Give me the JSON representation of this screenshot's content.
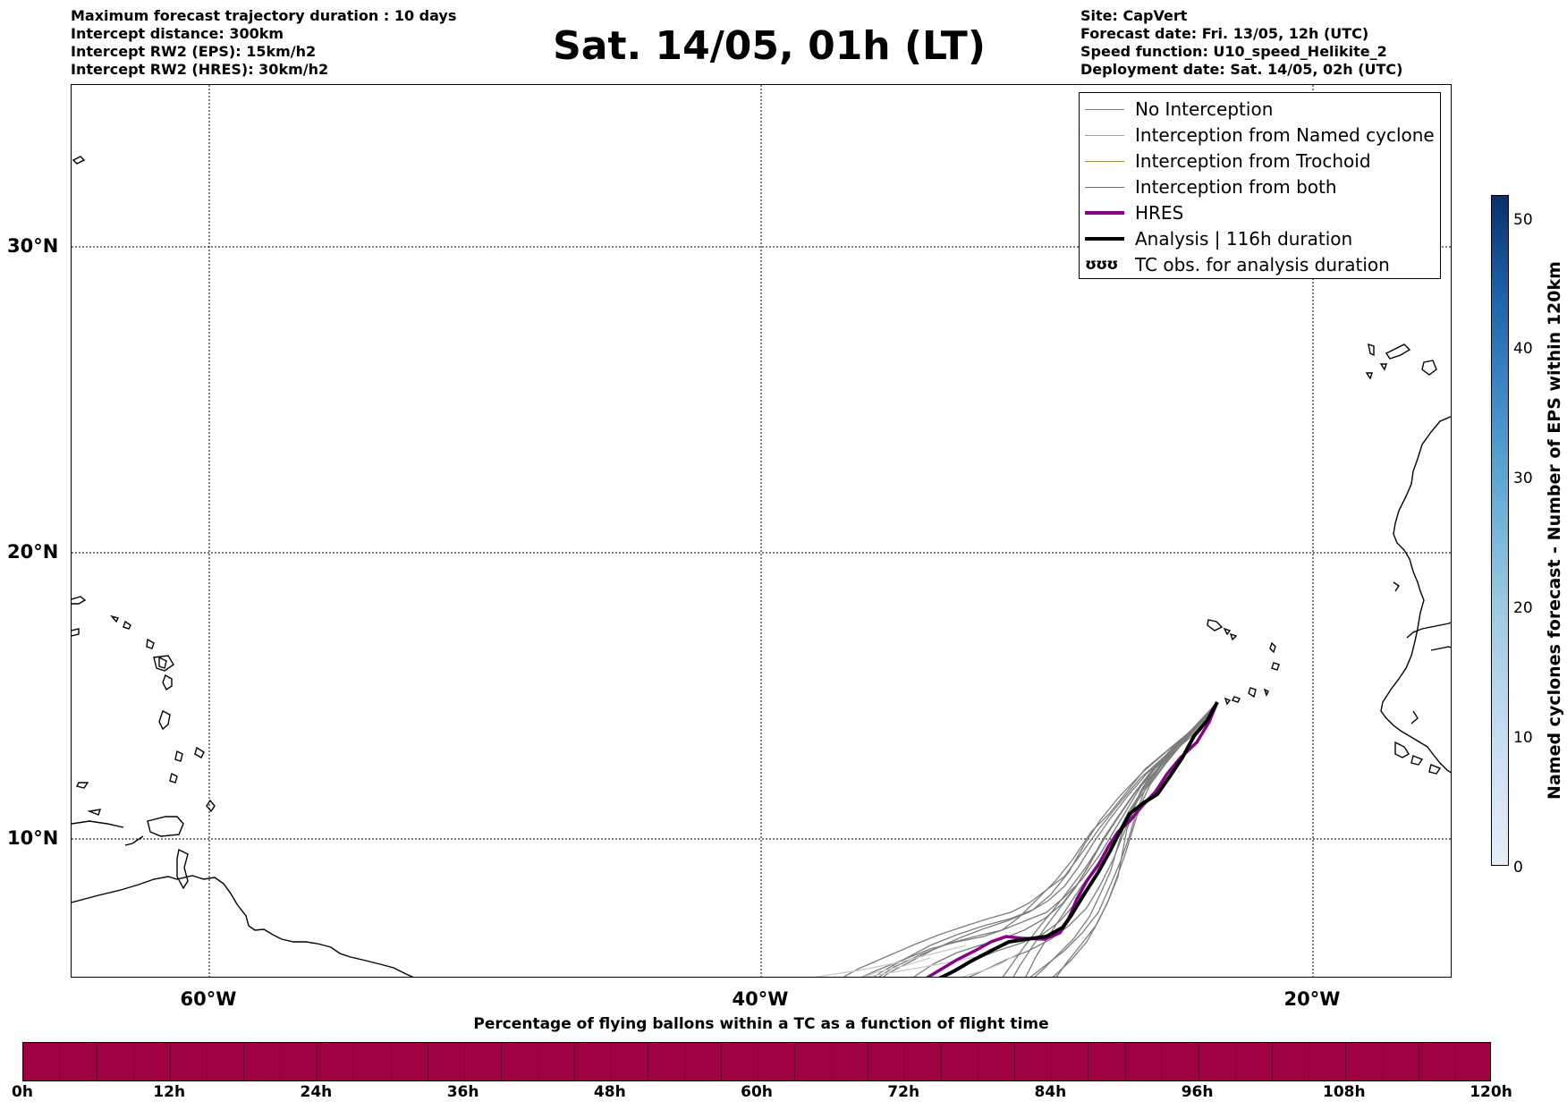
{
  "header_left": {
    "line1": "Maximum forecast trajectory duration : 10 days",
    "line2": "Intercept distance: 300km",
    "line3": "Intercept RW2 (EPS):  15km/h2",
    "line4": "Intercept RW2 (HRES): 30km/h2"
  },
  "title": "Sat. 14/05, 01h (LT)",
  "header_right": {
    "line1": "Site: CapVert",
    "line2": "Forecast date: Fri. 13/05, 12h (UTC)",
    "line3": "Speed function: U10_speed_Helikite_2",
    "line4": "Deployment date: Sat. 14/05, 02h (UTC)"
  },
  "map": {
    "lat_labels": {
      "n30": "30°N",
      "n20": "20°N",
      "n10": "10°N"
    },
    "lon_labels": {
      "w60": "60°W",
      "w40": "40°W",
      "w20": "20°W"
    },
    "gridlines": true,
    "colors": {
      "coast": "#000000",
      "eps_track": "#666666",
      "hres": "#8b008b",
      "analysis": "#000000"
    }
  },
  "legend": {
    "items": [
      {
        "label": "No Interception",
        "color": "#808080"
      },
      {
        "label": "Interception from Named cyclone",
        "color": "#ff7f50"
      },
      {
        "label": "Interception from Trochoid",
        "color": "#9a8c3a"
      },
      {
        "label": "Interception from both",
        "color": "#2ca02c"
      },
      {
        "label": "HRES",
        "color": "#8b008b"
      },
      {
        "label": "Analysis | 116h duration",
        "color": "#000000"
      }
    ],
    "tc_symbol": "ʊʊʊ",
    "tc_label": "TC obs. for analysis duration"
  },
  "colorbar_right": {
    "title": "Named cyclones forecast - Number of EPS within 120km",
    "ticks": [
      "0",
      "10",
      "20",
      "30",
      "40",
      "50"
    ],
    "range": [
      0,
      52
    ],
    "colors": [
      "#e6eef8",
      "#08306b"
    ]
  },
  "colorbar_bottom": {
    "title": "Percentage of flying ballons within a TC as a function of flight time",
    "ticks": [
      "0h",
      "12h",
      "24h",
      "36h",
      "48h",
      "60h",
      "72h",
      "84h",
      "96h",
      "108h",
      "120h"
    ],
    "color": "#9e0142"
  }
}
